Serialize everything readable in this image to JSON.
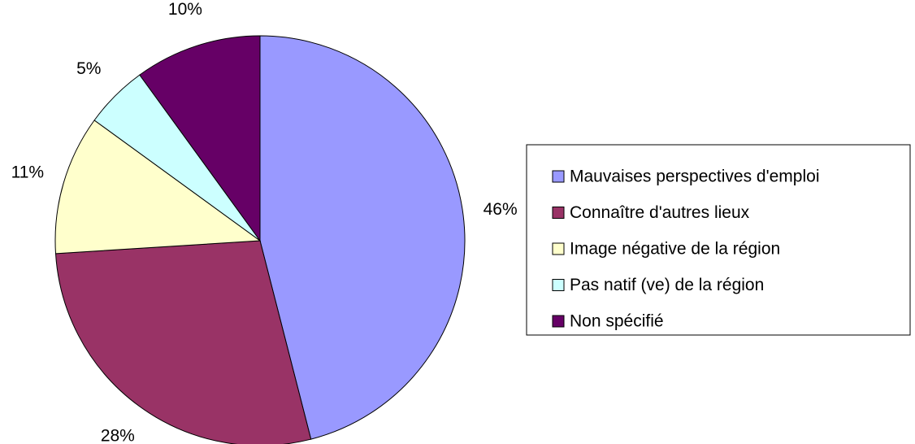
{
  "chart_data": {
    "type": "pie",
    "categories": [
      "Mauvaises perspectives d'emploi",
      "Connaître d'autres lieux",
      "Image négative de la région",
      "Pas natif (ve) de la région",
      "Non spécifié"
    ],
    "values": [
      46,
      28,
      11,
      5,
      10
    ],
    "value_labels": [
      "46%",
      "28%",
      "11%",
      "5%",
      "10%"
    ],
    "colors": [
      "#9999ff",
      "#993366",
      "#ffffcc",
      "#ccffff",
      "#660066"
    ],
    "legend": "right"
  }
}
